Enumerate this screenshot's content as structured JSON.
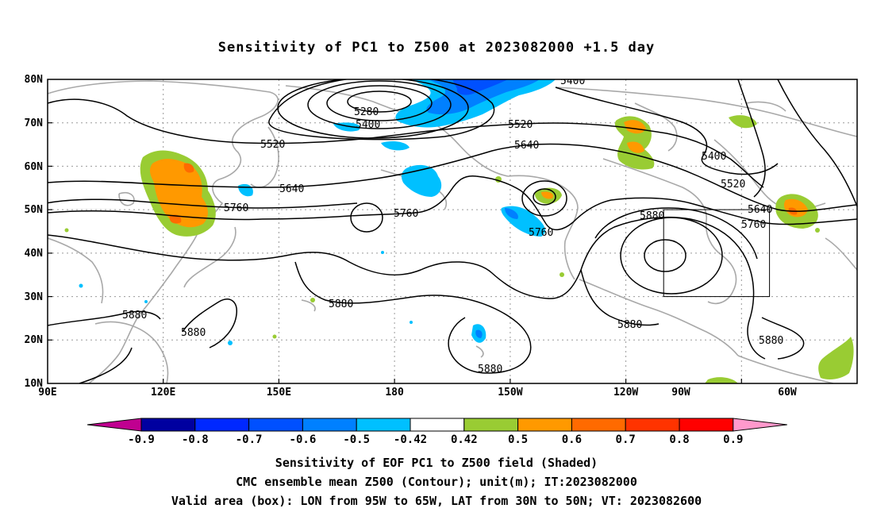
{
  "title": "Sensitivity of PC1 to Z500 at 2023082000 +1.5 day",
  "map": {
    "lon_range": [
      90,
      300
    ],
    "lat_range": [
      10,
      80
    ],
    "lat_labels": [
      "10N",
      "20N",
      "30N",
      "40N",
      "50N",
      "60N",
      "70N",
      "80N"
    ],
    "lon_labels": [
      "90E",
      "120E",
      "150E",
      "180",
      "150W",
      "120W",
      "90W",
      "60W"
    ],
    "valid_box": {
      "lon": [
        265,
        295
      ],
      "lat": [
        30,
        50
      ]
    }
  },
  "contour_labels": [
    {
      "text": "5280"
    },
    {
      "text": "5400"
    },
    {
      "text": "5400"
    },
    {
      "text": "5400"
    },
    {
      "text": "5520"
    },
    {
      "text": "5520"
    },
    {
      "text": "5520"
    },
    {
      "text": "5640"
    },
    {
      "text": "5640"
    },
    {
      "text": "5640"
    },
    {
      "text": "5760"
    },
    {
      "text": "5760"
    },
    {
      "text": "5760"
    },
    {
      "text": "5760"
    },
    {
      "text": "5880"
    },
    {
      "text": "5880"
    },
    {
      "text": "5880"
    },
    {
      "text": "5880"
    },
    {
      "text": "5880"
    },
    {
      "text": "5880"
    },
    {
      "text": "5880"
    }
  ],
  "colorbar": {
    "labels": [
      "-0.9",
      "-0.8",
      "-0.7",
      "-0.6",
      "-0.5",
      "-0.42",
      "0.42",
      "0.5",
      "0.6",
      "0.7",
      "0.8",
      "0.9"
    ],
    "colors": [
      "#0000a0",
      "#0028ff",
      "#0050ff",
      "#0080ff",
      "#00c0ff",
      "#ffffff",
      "#99cc33",
      "#ff9900",
      "#ff6a00",
      "#ff3300",
      "#ff0000"
    ],
    "low_end_color": "#c00090",
    "high_end_color": "#ff99cc"
  },
  "captions": [
    "Sensitivity of EOF PC1 to Z500 field (Shaded)",
    "CMC ensemble mean Z500 (Contour); unit(m); IT:2023082000",
    "Valid area (box): LON from 95W to 65W, LAT from 30N to 50N; VT: 2023082600"
  ]
}
